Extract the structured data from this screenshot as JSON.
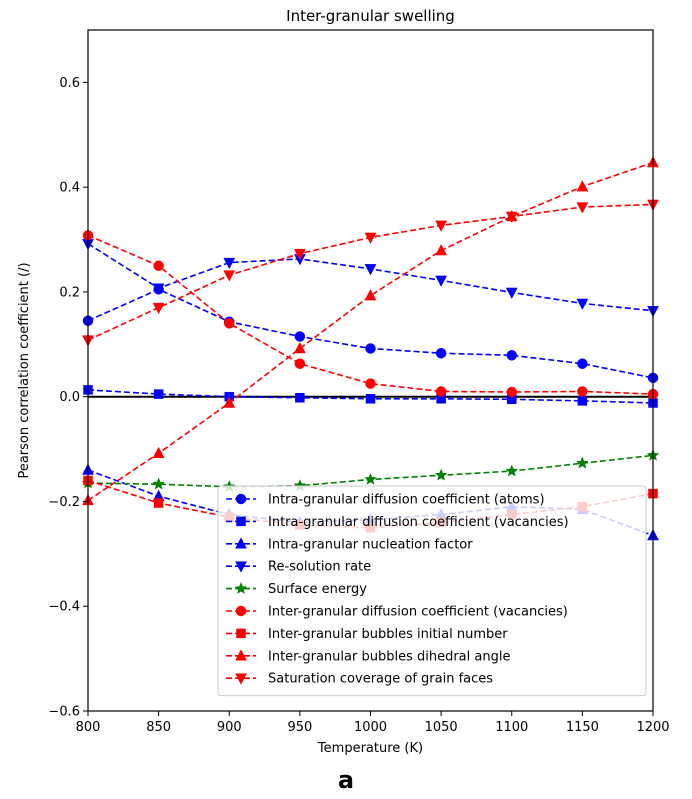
{
  "figure": {
    "panel_label": "a"
  },
  "chart_data": {
    "type": "line",
    "title": "Inter-granular swelling",
    "xlabel": "Temperature (K)",
    "ylabel": "Pearson correlation coefficient (/)",
    "xlim": [
      800,
      1200
    ],
    "ylim": [
      -0.6,
      0.7
    ],
    "xticks": [
      800,
      850,
      900,
      950,
      1000,
      1050,
      1100,
      1150,
      1200
    ],
    "yticks": [
      -0.6,
      -0.4,
      -0.2,
      0.0,
      0.2,
      0.4,
      0.6
    ],
    "ytick_labels": [
      "−0.6",
      "−0.4",
      "−0.2",
      "0.0",
      "0.2",
      "0.4",
      "0.6"
    ],
    "grid": false,
    "legend_position": "lower-right",
    "reference_line": 0,
    "x": [
      800,
      850,
      900,
      950,
      1000,
      1050,
      1100,
      1150,
      1200
    ],
    "series": [
      {
        "name": "Intra-granular diffusion coefficient (atoms)",
        "color": "#0000ff",
        "marker": "circle",
        "values": [
          0.145,
          0.205,
          0.143,
          0.115,
          0.092,
          0.083,
          0.079,
          0.063,
          0.036
        ]
      },
      {
        "name": "Intra-granular diffusion coefficient (vacancies)",
        "color": "#0000ff",
        "marker": "square",
        "values": [
          0.013,
          0.005,
          0.0,
          -0.002,
          -0.004,
          -0.004,
          -0.005,
          -0.008,
          -0.012
        ]
      },
      {
        "name": "Intra-granular nucleation factor",
        "color": "#0000ff",
        "marker": "triangle-up",
        "values": [
          -0.14,
          -0.19,
          -0.225,
          -0.24,
          -0.235,
          -0.225,
          -0.21,
          -0.215,
          -0.265
        ]
      },
      {
        "name": "Re-solution rate",
        "color": "#0000ff",
        "marker": "triangle-down",
        "values": [
          0.292,
          0.207,
          0.256,
          0.263,
          0.244,
          0.222,
          0.199,
          0.178,
          0.164
        ]
      },
      {
        "name": "Surface energy",
        "color": "#008000",
        "marker": "star",
        "values": [
          -0.165,
          -0.167,
          -0.172,
          -0.17,
          -0.158,
          -0.15,
          -0.142,
          -0.127,
          -0.112
        ]
      },
      {
        "name": "Inter-granular diffusion coefficient (vacancies)",
        "color": "#ff0000",
        "marker": "circle",
        "values": [
          0.308,
          0.25,
          0.14,
          0.063,
          0.025,
          0.01,
          0.009,
          0.01,
          0.005
        ]
      },
      {
        "name": "Inter-granular bubbles initial number",
        "color": "#ff0000",
        "marker": "square",
        "values": [
          -0.16,
          -0.203,
          -0.23,
          -0.245,
          -0.25,
          -0.24,
          -0.225,
          -0.21,
          -0.185
        ]
      },
      {
        "name": "Inter-granular bubbles dihedral angle",
        "color": "#ff0000",
        "marker": "triangle-up",
        "values": [
          -0.198,
          -0.108,
          -0.012,
          0.092,
          0.193,
          0.279,
          0.344,
          0.401,
          0.447
        ]
      },
      {
        "name": "Saturation coverage of grain faces",
        "color": "#ff0000",
        "marker": "triangle-down",
        "values": [
          0.108,
          0.17,
          0.232,
          0.273,
          0.304,
          0.327,
          0.344,
          0.362,
          0.367
        ]
      }
    ]
  }
}
